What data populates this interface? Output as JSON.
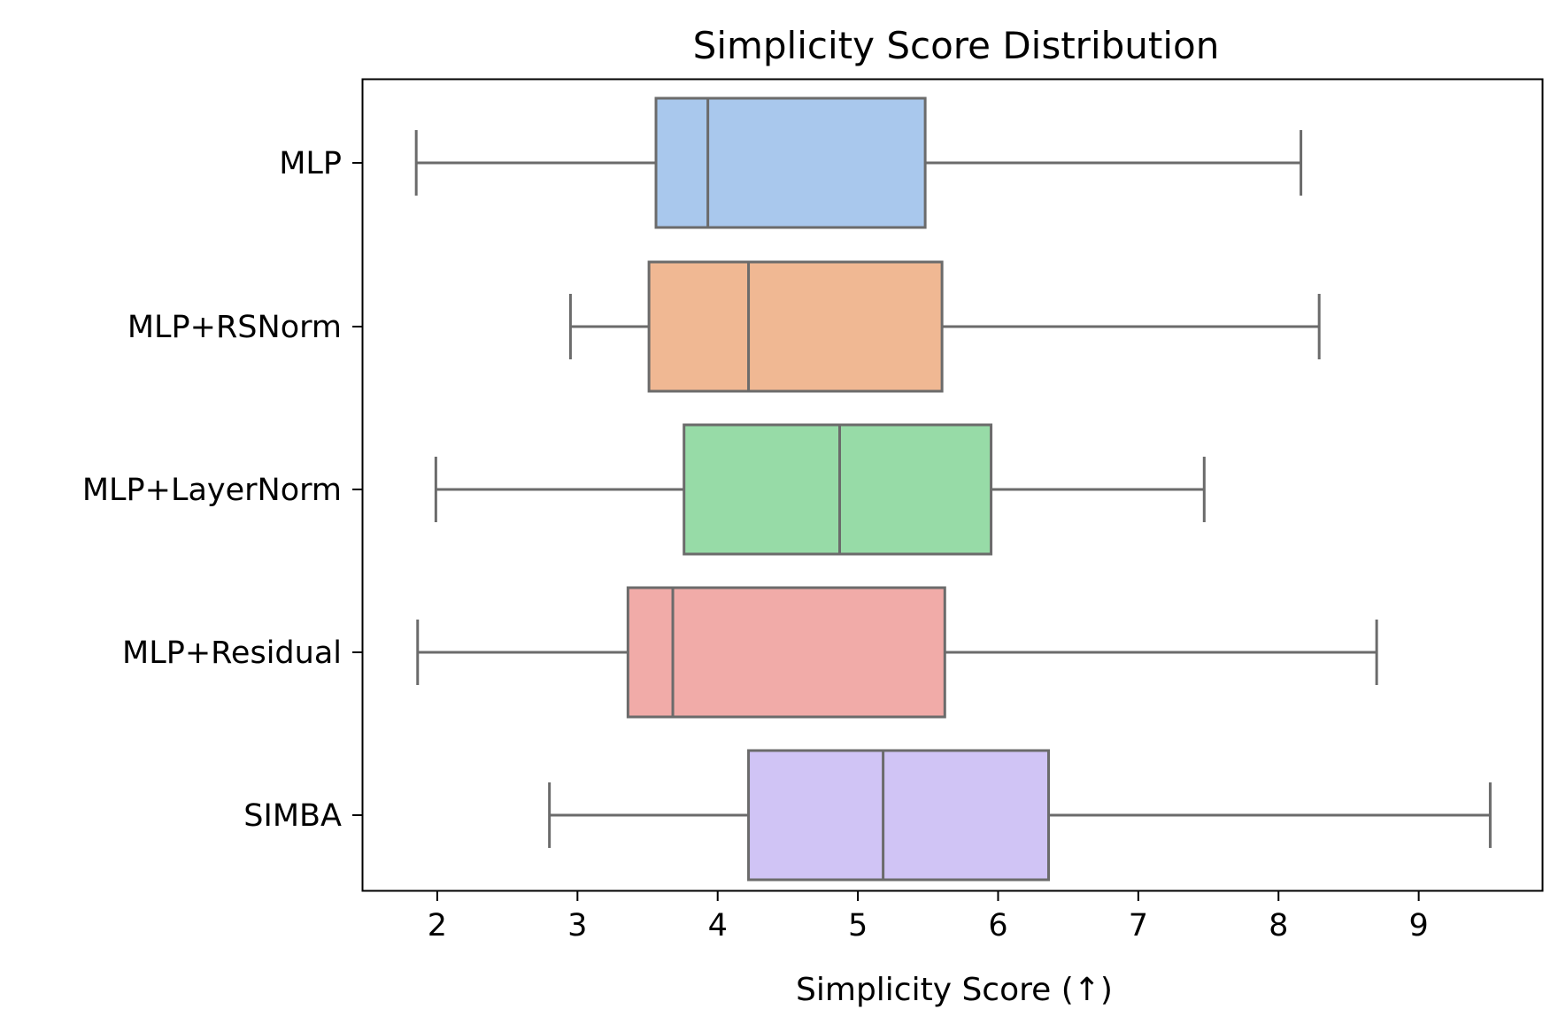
{
  "chart_data": {
    "type": "boxplot",
    "orientation": "horizontal",
    "title": "Simplicity Score Distribution",
    "xlabel": "Simplicity Score (↑)",
    "ylabel": "",
    "xlim": [
      1.47,
      9.88
    ],
    "xticks": [
      2,
      3,
      4,
      5,
      6,
      7,
      8,
      9
    ],
    "grid": false,
    "edge_color": "#6b6b6b",
    "categories": [
      "MLP",
      "MLP+RSNorm",
      "MLP+LayerNorm",
      "MLP+Residual",
      "SIMBA"
    ],
    "boxes": [
      {
        "label": "MLP",
        "whisker_low": 1.85,
        "q1": 3.56,
        "median": 3.93,
        "q3": 5.48,
        "whisker_high": 8.16,
        "color": "#a9c8ed"
      },
      {
        "label": "MLP+RSNorm",
        "whisker_low": 2.95,
        "q1": 3.51,
        "median": 4.22,
        "q3": 5.6,
        "whisker_high": 8.29,
        "color": "#f0b893"
      },
      {
        "label": "MLP+LayerNorm",
        "whisker_low": 1.99,
        "q1": 3.76,
        "median": 4.87,
        "q3": 5.95,
        "whisker_high": 7.47,
        "color": "#97dba7"
      },
      {
        "label": "MLP+Residual",
        "whisker_low": 1.86,
        "q1": 3.36,
        "median": 3.68,
        "q3": 5.62,
        "whisker_high": 8.7,
        "color": "#f1aba8"
      },
      {
        "label": "SIMBA",
        "whisker_low": 2.8,
        "q1": 4.22,
        "median": 5.18,
        "q3": 6.36,
        "whisker_high": 9.51,
        "color": "#d0c4f5"
      }
    ]
  }
}
